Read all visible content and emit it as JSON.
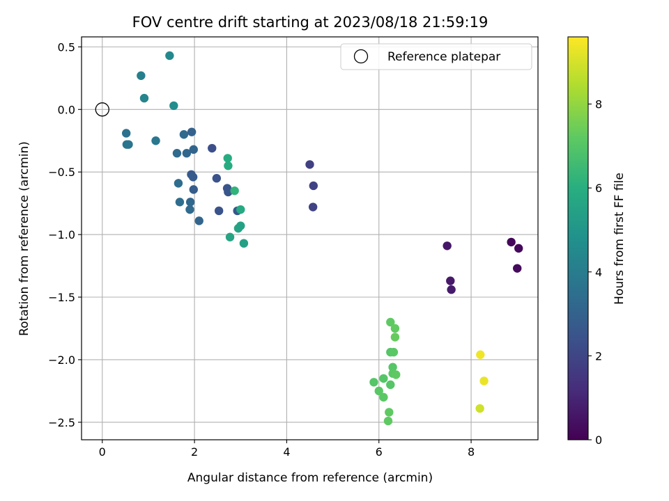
{
  "chart_data": {
    "type": "scatter",
    "title": "FOV centre drift starting at 2023/08/18 21:59:19",
    "xlabel": "Angular distance from reference (arcmin)",
    "ylabel": "Rotation from reference (arcmin)",
    "xlim": [
      -0.45,
      9.45
    ],
    "ylim": [
      -2.64,
      0.58
    ],
    "xticks": [
      0,
      2,
      4,
      6,
      8
    ],
    "yticks": [
      0.5,
      0.0,
      -0.5,
      -1.0,
      -1.5,
      -2.0,
      -2.5
    ],
    "xtick_labels": [
      "0",
      "2",
      "4",
      "6",
      "8"
    ],
    "ytick_labels": [
      "0.5",
      "0.0",
      "−0.5",
      "−1.0",
      "−1.5",
      "−2.0",
      "−2.5"
    ],
    "grid": true,
    "colormap": "viridis",
    "colorbar": {
      "label": "Hours from first FF file",
      "range": [
        0,
        9.6
      ],
      "ticks": [
        0,
        2,
        4,
        6,
        8
      ],
      "tick_labels": [
        "0",
        "2",
        "4",
        "6",
        "8"
      ]
    },
    "legend": {
      "position": "top-right",
      "entries": [
        {
          "label": "Reference platepar",
          "marker": "open-circle"
        }
      ]
    },
    "reference_point": {
      "x": 0.0,
      "y": 0.0
    },
    "points": [
      {
        "x": 8.87,
        "y": -1.06,
        "c": 0.15
      },
      {
        "x": 9.03,
        "y": -1.11,
        "c": 0.2
      },
      {
        "x": 9.0,
        "y": -1.27,
        "c": 0.25
      },
      {
        "x": 7.48,
        "y": -1.09,
        "c": 0.6
      },
      {
        "x": 7.55,
        "y": -1.37,
        "c": 0.65
      },
      {
        "x": 7.57,
        "y": -1.44,
        "c": 0.7
      },
      {
        "x": 4.5,
        "y": -0.44,
        "c": 1.8
      },
      {
        "x": 4.58,
        "y": -0.61,
        "c": 1.85
      },
      {
        "x": 4.57,
        "y": -0.78,
        "c": 1.9
      },
      {
        "x": 2.38,
        "y": -0.31,
        "c": 2.3
      },
      {
        "x": 2.48,
        "y": -0.55,
        "c": 2.4
      },
      {
        "x": 2.53,
        "y": -0.81,
        "c": 2.45
      },
      {
        "x": 2.71,
        "y": -0.63,
        "c": 2.5
      },
      {
        "x": 2.73,
        "y": -0.66,
        "c": 2.5
      },
      {
        "x": 1.93,
        "y": -0.52,
        "c": 2.7
      },
      {
        "x": 1.97,
        "y": -0.54,
        "c": 2.75
      },
      {
        "x": 1.98,
        "y": -0.64,
        "c": 2.8
      },
      {
        "x": 2.93,
        "y": -0.81,
        "c": 2.6
      },
      {
        "x": 1.94,
        "y": -0.18,
        "c": 3.0
      },
      {
        "x": 1.98,
        "y": -0.32,
        "c": 3.1
      },
      {
        "x": 2.1,
        "y": -0.89,
        "c": 3.1
      },
      {
        "x": 1.83,
        "y": -0.35,
        "c": 3.2
      },
      {
        "x": 1.77,
        "y": -0.2,
        "c": 3.3
      },
      {
        "x": 1.62,
        "y": -0.35,
        "c": 3.3
      },
      {
        "x": 1.65,
        "y": -0.59,
        "c": 3.4
      },
      {
        "x": 1.68,
        "y": -0.74,
        "c": 3.4
      },
      {
        "x": 1.91,
        "y": -0.74,
        "c": 3.2
      },
      {
        "x": 1.9,
        "y": -0.8,
        "c": 3.3
      },
      {
        "x": 0.52,
        "y": -0.19,
        "c": 3.6
      },
      {
        "x": 0.53,
        "y": -0.28,
        "c": 3.7
      },
      {
        "x": 0.57,
        "y": -0.28,
        "c": 3.7
      },
      {
        "x": 1.16,
        "y": -0.25,
        "c": 3.8
      },
      {
        "x": 0.84,
        "y": 0.27,
        "c": 4.1
      },
      {
        "x": 0.91,
        "y": 0.09,
        "c": 4.3
      },
      {
        "x": 1.46,
        "y": 0.43,
        "c": 4.5
      },
      {
        "x": 1.55,
        "y": 0.03,
        "c": 4.6
      },
      {
        "x": 2.72,
        "y": -0.39,
        "c": 5.9
      },
      {
        "x": 2.73,
        "y": -0.45,
        "c": 5.9
      },
      {
        "x": 2.87,
        "y": -0.65,
        "c": 6.2
      },
      {
        "x": 3.0,
        "y": -0.8,
        "c": 5.8
      },
      {
        "x": 2.95,
        "y": -0.95,
        "c": 5.6
      },
      {
        "x": 3.0,
        "y": -0.93,
        "c": 5.5
      },
      {
        "x": 3.07,
        "y": -1.07,
        "c": 5.4
      },
      {
        "x": 2.77,
        "y": -1.02,
        "c": 5.6
      },
      {
        "x": 6.25,
        "y": -1.7,
        "c": 7.2
      },
      {
        "x": 6.35,
        "y": -1.75,
        "c": 7.25
      },
      {
        "x": 6.35,
        "y": -1.82,
        "c": 7.3
      },
      {
        "x": 6.25,
        "y": -1.94,
        "c": 7.0
      },
      {
        "x": 6.32,
        "y": -1.94,
        "c": 7.1
      },
      {
        "x": 6.3,
        "y": -2.06,
        "c": 7.0
      },
      {
        "x": 6.3,
        "y": -2.11,
        "c": 7.1
      },
      {
        "x": 6.37,
        "y": -2.12,
        "c": 7.2
      },
      {
        "x": 6.1,
        "y": -2.15,
        "c": 7.0
      },
      {
        "x": 5.89,
        "y": -2.18,
        "c": 7.0
      },
      {
        "x": 6.25,
        "y": -2.2,
        "c": 7.0
      },
      {
        "x": 6.0,
        "y": -2.25,
        "c": 7.1
      },
      {
        "x": 6.1,
        "y": -2.3,
        "c": 7.1
      },
      {
        "x": 6.22,
        "y": -2.42,
        "c": 7.2
      },
      {
        "x": 6.2,
        "y": -2.49,
        "c": 7.2
      },
      {
        "x": 8.2,
        "y": -1.96,
        "c": 9.4
      },
      {
        "x": 8.28,
        "y": -2.17,
        "c": 9.3
      },
      {
        "x": 8.19,
        "y": -2.39,
        "c": 8.9
      }
    ]
  }
}
